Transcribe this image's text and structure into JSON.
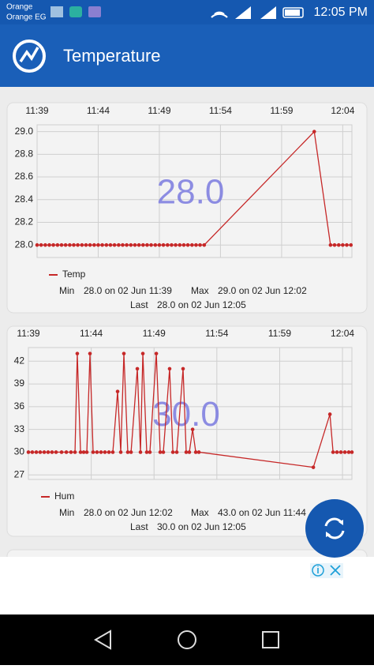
{
  "status_bar": {
    "carrier_lines": [
      "Orange",
      "Orange EG"
    ],
    "time": "12:05 PM"
  },
  "app_bar": {
    "title": "Temperature"
  },
  "chart_data": [
    {
      "type": "line",
      "overlay": "28.0",
      "xlim": [
        699,
        724.75
      ],
      "xticks": [
        {
          "value": 699,
          "label": "11:39"
        },
        {
          "value": 704,
          "label": "11:44"
        },
        {
          "value": 709,
          "label": "11:49"
        },
        {
          "value": 714,
          "label": "11:54"
        },
        {
          "value": 719,
          "label": "11:59"
        },
        {
          "value": 724,
          "label": "12:04"
        }
      ],
      "ylim": [
        27.89,
        29.06
      ],
      "yticks": [
        {
          "value": 28,
          "label": "28.0"
        },
        {
          "value": 28.2,
          "label": "28.2"
        },
        {
          "value": 28.4,
          "label": "28.4"
        },
        {
          "value": 28.6,
          "label": "28.6"
        },
        {
          "value": 28.8,
          "label": "28.8"
        },
        {
          "value": 29,
          "label": "29.0"
        }
      ],
      "grid": true,
      "x": [
        699,
        699.33,
        699.67,
        700,
        700.33,
        700.67,
        701,
        701.33,
        701.67,
        702,
        702.33,
        702.67,
        703,
        703.33,
        703.67,
        704,
        704.33,
        704.67,
        705,
        705.33,
        705.67,
        706,
        706.33,
        706.67,
        707,
        707.33,
        707.67,
        708,
        708.33,
        708.67,
        709,
        709.33,
        709.67,
        710,
        710.33,
        710.67,
        711,
        711.33,
        711.67,
        712,
        712.33,
        712.67,
        721.67,
        723,
        723.33,
        723.67,
        724,
        724.33,
        724.67
      ],
      "series": [
        {
          "name": "Temp",
          "color": "#c62828",
          "values": [
            28,
            28,
            28,
            28,
            28,
            28,
            28,
            28,
            28,
            28,
            28,
            28,
            28,
            28,
            28,
            28,
            28,
            28,
            28,
            28,
            28,
            28,
            28,
            28,
            28,
            28,
            28,
            28,
            28,
            28,
            28,
            28,
            28,
            28,
            28,
            28,
            28,
            28,
            28,
            28,
            28,
            28,
            29,
            28,
            28,
            28,
            28,
            28,
            28
          ]
        }
      ],
      "stats": {
        "min_label": "Min",
        "min": "28.0 on 02 Jun 11:39",
        "max_label": "Max",
        "max": "29.0 on 02 Jun 12:02",
        "last_label": "Last",
        "last": "28.0 on 02 Jun 12:05"
      }
    },
    {
      "type": "line",
      "overlay": "30.0",
      "xlim": [
        699,
        724.75
      ],
      "xticks": [
        {
          "value": 699,
          "label": "11:39"
        },
        {
          "value": 704,
          "label": "11:44"
        },
        {
          "value": 709,
          "label": "11:49"
        },
        {
          "value": 714,
          "label": "11:54"
        },
        {
          "value": 719,
          "label": "11:59"
        },
        {
          "value": 724,
          "label": "12:04"
        }
      ],
      "ylim": [
        26.4,
        43.8
      ],
      "yticks": [
        27,
        30,
        33,
        36,
        39,
        42
      ],
      "grid": true,
      "x": [
        699,
        699.31,
        699.63,
        699.94,
        700.26,
        700.57,
        700.88,
        701.2,
        701.64,
        702.02,
        702.39,
        702.71,
        702.89,
        703.15,
        703.4,
        703.65,
        703.9,
        704.15,
        704.46,
        704.78,
        705.09,
        705.41,
        705.72,
        706.1,
        706.35,
        706.6,
        706.91,
        707.17,
        707.67,
        707.92,
        708.11,
        708.42,
        708.67,
        709.18,
        709.49,
        709.74,
        710.24,
        710.5,
        710.81,
        711.31,
        711.56,
        711.81,
        712.07,
        712.32,
        712.57,
        721.68,
        723,
        723.25,
        723.56,
        723.87,
        724.19,
        724.5,
        724.75
      ],
      "series": [
        {
          "name": "Hum",
          "color": "#c62828",
          "values": [
            30,
            30,
            30,
            30,
            30,
            30,
            30,
            30,
            30,
            30,
            30,
            30,
            43,
            30,
            30,
            30,
            43,
            30,
            30,
            30,
            30,
            30,
            30,
            38,
            30,
            43,
            30,
            30,
            41,
            30,
            43,
            30,
            30,
            43,
            30,
            30,
            41,
            30,
            30,
            41,
            30,
            30,
            33,
            30,
            30,
            28,
            35,
            30,
            30,
            30,
            30,
            30,
            30
          ]
        }
      ],
      "stats": {
        "min_label": "Min",
        "min": "28.0 on 02 Jun 12:02",
        "max_label": "Max",
        "max": "43.0 on 02 Jun 11:44",
        "last_label": "Last",
        "last": "30.0 on 02 Jun 12:05"
      }
    }
  ]
}
